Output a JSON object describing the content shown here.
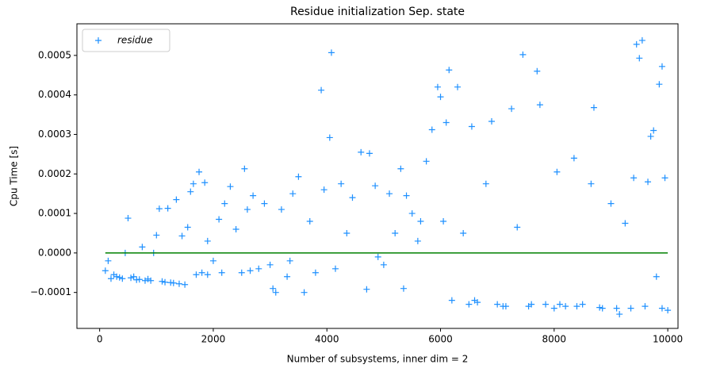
{
  "chart_data": {
    "type": "scatter",
    "title": "Residue initialization Sep. state",
    "xlabel": "Number of subsystems, inner dim = 2",
    "ylabel": "Cpu Time [s]",
    "xlim": [
      -400,
      10180
    ],
    "ylim": [
      -0.000191,
      0.00058
    ],
    "xticks": [
      0,
      2000,
      4000,
      6000,
      8000,
      10000
    ],
    "yticks": [
      {
        "value": -0.0001,
        "label": "−0.0001"
      },
      {
        "value": 0,
        "label": "0.0000"
      },
      {
        "value": 0.0001,
        "label": "0.0001"
      },
      {
        "value": 0.0002,
        "label": "0.0002"
      },
      {
        "value": 0.0003,
        "label": "0.0003"
      },
      {
        "value": 0.0004,
        "label": "0.0004"
      },
      {
        "value": 0.0005,
        "label": "0.0005"
      }
    ],
    "legend": "upper left",
    "grid": false,
    "series": [
      {
        "name": "residue",
        "color": "#1e90ff",
        "x": [
          100,
          150,
          200,
          250,
          300,
          350,
          400,
          450,
          500,
          550,
          600,
          650,
          700,
          750,
          800,
          850,
          900,
          950,
          1000,
          1050,
          1100,
          1150,
          1200,
          1250,
          1300,
          1350,
          1400,
          1450,
          1500,
          1550,
          1600,
          1650,
          1700,
          1750,
          1800,
          1850,
          1900,
          2000,
          2100,
          2200,
          2300,
          2400,
          2500,
          2550,
          2600,
          2700,
          2800,
          2900,
          3000,
          3050,
          3100,
          3200,
          3300,
          3400,
          3500,
          3600,
          3700,
          3800,
          3900,
          3950,
          4050,
          4080,
          4150,
          4250,
          4350,
          4450,
          4600,
          4700,
          4750,
          4850,
          5000,
          5100,
          5200,
          5300,
          5350,
          5400,
          5500,
          5650,
          5750,
          5850,
          5950,
          6000,
          6050,
          6100,
          6150,
          6200,
          6300,
          6400,
          6500,
          6550,
          6650,
          6800,
          6900,
          7000,
          7150,
          7250,
          7350,
          7450,
          7550,
          7700,
          7750,
          7850,
          8000,
          8050,
          8200,
          8350,
          8500,
          8650,
          8700,
          8850,
          9000,
          9150,
          9250,
          9350,
          9400,
          9450,
          9500,
          9550,
          9650,
          9700,
          9750,
          9800,
          9850,
          9900,
          9950,
          10000,
          6600,
          7100,
          7600,
          8100,
          8400,
          8800,
          9100,
          9600,
          9900,
          5600,
          4900,
          3350,
          2650,
          2150,
          1900
        ],
        "values": [
          -4.5e-05,
          -2e-05,
          -6.5e-05,
          -5.5e-05,
          -6e-05,
          -6.2e-05,
          -6.5e-05,
          0,
          8.8e-05,
          -6.3e-05,
          -6e-05,
          -6.8e-05,
          -6.7e-05,
          1.5e-05,
          -7e-05,
          -6.6e-05,
          -7e-05,
          0,
          4.5e-05,
          0.000112,
          -7.2e-05,
          -7.4e-05,
          0.000113,
          -7.5e-05,
          -7.6e-05,
          0.000135,
          -7.8e-05,
          4.3e-05,
          -8e-05,
          6.5e-05,
          0.000155,
          0.000175,
          -5.5e-05,
          0.000205,
          -5e-05,
          0.000178,
          3e-05,
          -2e-05,
          8.5e-05,
          0.000125,
          0.000168,
          6e-05,
          -5e-05,
          0.000213,
          0.00011,
          0.000145,
          -4e-05,
          0.000125,
          -3e-05,
          -9e-05,
          -0.0001,
          0.00011,
          -6e-05,
          0.00015,
          0.000193,
          -0.0001,
          8e-05,
          -5e-05,
          0.000412,
          0.00016,
          0.000292,
          0.000507,
          -4e-05,
          0.000175,
          5e-05,
          0.00014,
          0.000255,
          -9.2e-05,
          0.000252,
          0.00017,
          -3e-05,
          0.00015,
          5e-05,
          0.000213,
          -9e-05,
          0.000145,
          0.0001,
          8e-05,
          0.000232,
          0.000312,
          0.00042,
          0.000395,
          8e-05,
          0.00033,
          0.000463,
          -0.00012,
          0.00042,
          5e-05,
          -0.00013,
          0.00032,
          -0.000125,
          0.000175,
          0.000333,
          -0.00013,
          -0.000135,
          0.000365,
          6.5e-05,
          0.000502,
          -0.000135,
          0.00046,
          0.000375,
          -0.00013,
          -0.00014,
          0.000205,
          -0.000135,
          0.00024,
          -0.00013,
          0.000175,
          0.000368,
          -0.00014,
          0.000125,
          -0.000155,
          7.5e-05,
          -0.00014,
          0.00019,
          0.000528,
          0.000493,
          0.000538,
          0.00018,
          0.000295,
          0.00031,
          -6e-05,
          0.000427,
          0.000472,
          0.00019,
          -0.000145,
          -0.00012,
          -0.000135,
          -0.00013,
          -0.00013,
          -0.000135,
          -0.000138,
          -0.00014,
          -0.000135,
          -0.00014,
          3e-05,
          -1e-05,
          -2e-05,
          -4.5e-05,
          -5e-05,
          -5.5e-05
        ]
      }
    ],
    "reference_line": {
      "color": "#008000",
      "x": [
        100,
        10000
      ],
      "values": [
        0,
        0
      ]
    }
  }
}
